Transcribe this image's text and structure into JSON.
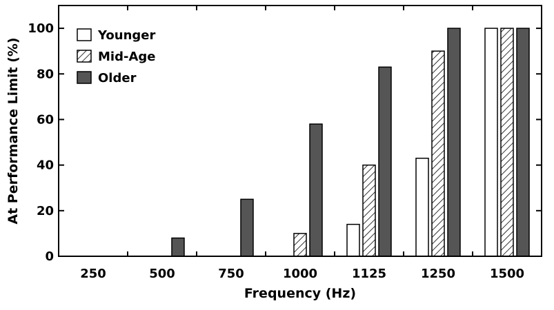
{
  "chart_data": {
    "type": "bar",
    "xlabel": "Frequency (Hz)",
    "ylabel": "At Performance Limit (%)",
    "categories": [
      "250",
      "500",
      "750",
      "1000",
      "1125",
      "1250",
      "1500"
    ],
    "ylim": [
      0,
      110
    ],
    "yticks": [
      "0",
      "20",
      "40",
      "60",
      "80",
      "100"
    ],
    "series": [
      {
        "name": "Younger",
        "fill": "white",
        "values": [
          0,
          0,
          0,
          0,
          14,
          43,
          100
        ]
      },
      {
        "name": "Mid-Age",
        "fill": "hatch",
        "values": [
          0,
          0,
          0,
          10,
          40,
          90,
          100
        ]
      },
      {
        "name": "Older",
        "fill": "dark",
        "values": [
          0,
          8,
          25,
          58,
          83,
          100,
          100
        ]
      }
    ],
    "legend_position": "top-left",
    "grid": false,
    "colors": {
      "outline": "#000000",
      "dark_fill": "#555555",
      "hatch_line": "#000000"
    }
  }
}
